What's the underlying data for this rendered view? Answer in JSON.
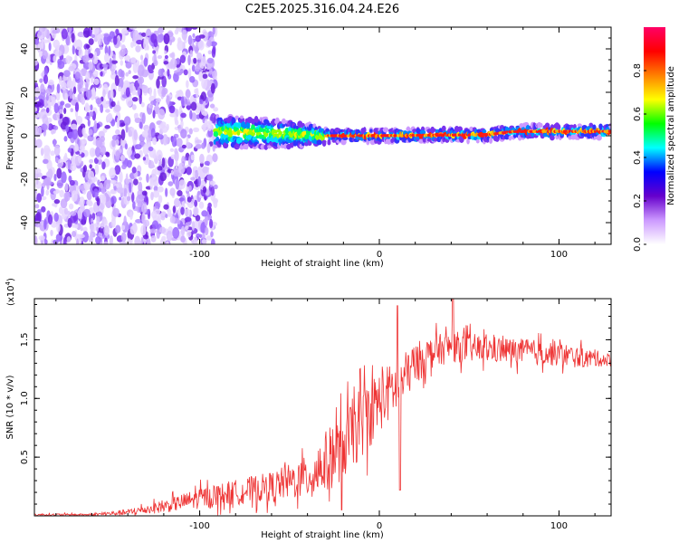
{
  "title": "C2E5.2025.316.04.24.E26",
  "chart_data": [
    {
      "type": "heatmap",
      "name": "spectrogram",
      "xlabel": "Height of straight line (km)",
      "ylabel": "Frequency (Hz)",
      "xlim": [
        -192,
        129
      ],
      "ylim": [
        -50,
        50
      ],
      "xticks": [
        -100,
        0,
        100
      ],
      "xtick_labels": [
        "-100",
        "0",
        "100"
      ],
      "yticks": [
        -40,
        -20,
        0,
        20,
        40
      ],
      "ytick_labels": [
        "-40",
        "-20",
        "0",
        "20",
        "40"
      ],
      "noise_region_x": [
        -192,
        -91
      ],
      "signal_band": {
        "x_start": -91,
        "center_hz": [
          [
            -91,
            2
          ],
          [
            -60,
            1
          ],
          [
            -30,
            0
          ],
          [
            0,
            0
          ],
          [
            60,
            0.5
          ],
          [
            75,
            2
          ],
          [
            129,
            2
          ]
        ],
        "halfwidth_hz": [
          [
            -91,
            6
          ],
          [
            -60,
            5
          ],
          [
            -35,
            3
          ],
          [
            -25,
            1.5
          ],
          [
            129,
            1.5
          ]
        ]
      },
      "colorbar": {
        "label": "Normalized spectral amplitude",
        "ticks": [
          0.0,
          0.2,
          0.4,
          0.6,
          0.8
        ],
        "tick_labels": [
          "0.0",
          "0.2",
          "0.4",
          "0.6",
          "0.8"
        ],
        "range": [
          0,
          1
        ],
        "colors": [
          "#ffffff",
          "#cc99ff",
          "#6600cc",
          "#0000ff",
          "#00ffff",
          "#00ff00",
          "#ffff00",
          "#ff8000",
          "#ff0000",
          "#ff0066"
        ]
      }
    },
    {
      "type": "line",
      "name": "snr",
      "xlabel": "Height of straight line (km)",
      "ylabel": "SNR (10 * v/v)",
      "y_multiplier": "(x10",
      "y_multiplier_exp": "4",
      "xlim": [
        -192,
        129
      ],
      "ylim": [
        0,
        1.85
      ],
      "xticks": [
        -100,
        0,
        100
      ],
      "xtick_labels": [
        "-100",
        "0",
        "100"
      ],
      "yticks": [
        0.5,
        1.0,
        1.5
      ],
      "ytick_labels": [
        "0.5",
        "1.0",
        "1.5"
      ],
      "color": "#ee3333",
      "envelope": {
        "x": [
          -192,
          -160,
          -140,
          -120,
          -100,
          -80,
          -60,
          -40,
          -30,
          -20,
          -10,
          0,
          10,
          20,
          30,
          40,
          60,
          80,
          100,
          110,
          129
        ],
        "mean": [
          0.01,
          0.01,
          0.03,
          0.08,
          0.15,
          0.2,
          0.25,
          0.33,
          0.45,
          0.6,
          0.8,
          0.98,
          1.1,
          1.3,
          1.4,
          1.44,
          1.42,
          1.4,
          1.38,
          1.35,
          1.33
        ],
        "noise": [
          0.01,
          0.01,
          0.03,
          0.06,
          0.1,
          0.12,
          0.14,
          0.2,
          0.3,
          0.32,
          0.35,
          0.3,
          0.25,
          0.2,
          0.15,
          0.15,
          0.13,
          0.12,
          0.12,
          0.1,
          0.06
        ]
      },
      "peaks": [
        {
          "x": 10,
          "y": 1.79
        },
        {
          "x": 41,
          "y": 1.85
        },
        {
          "x": 11.5,
          "y": 0.22
        },
        {
          "x": -21,
          "y": 0.05
        }
      ]
    }
  ]
}
